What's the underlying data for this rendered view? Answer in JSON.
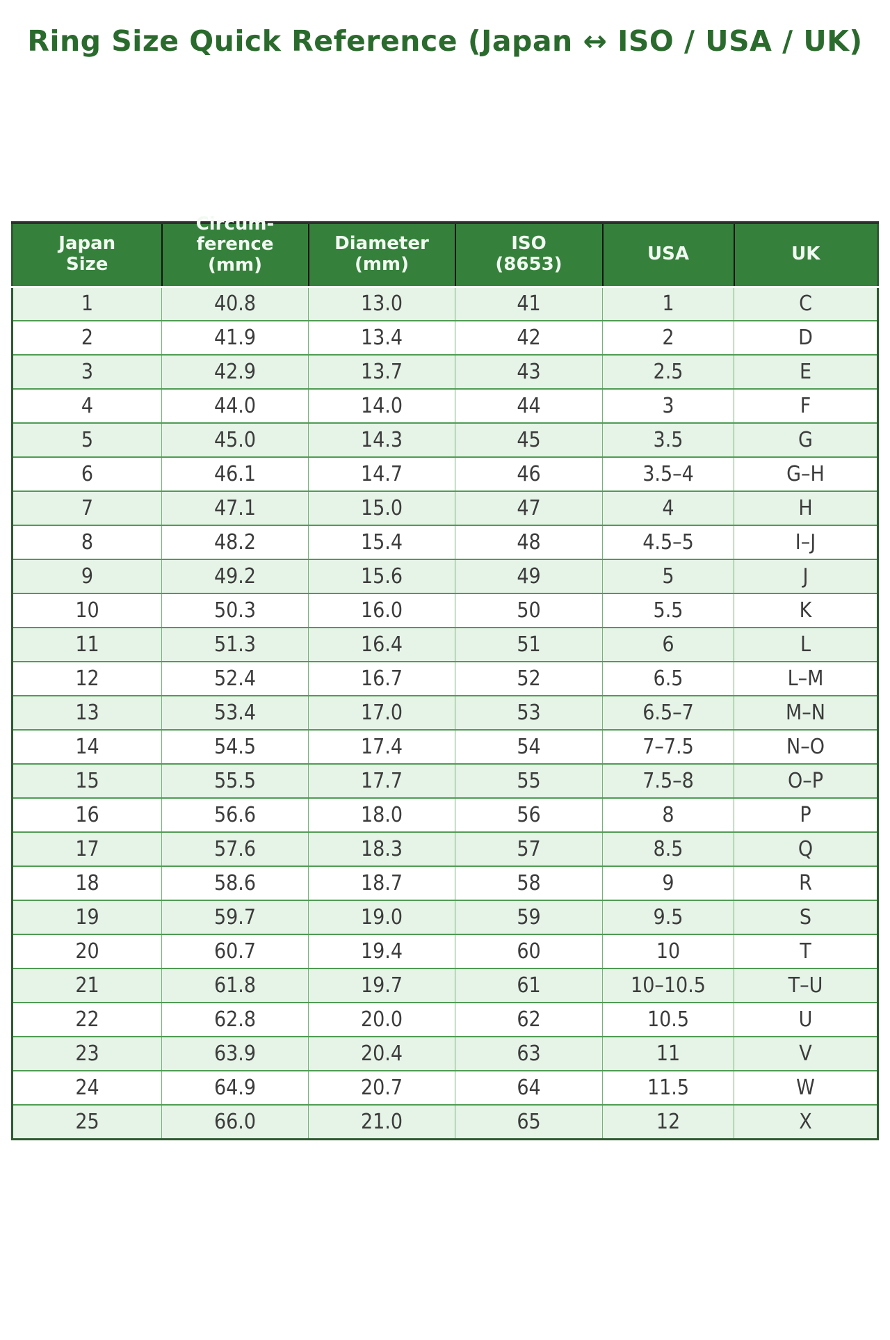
{
  "page": {
    "background": "#ffffff"
  },
  "title": "Ring Size Quick Reference (Japan ↔ ISO / USA / UK)",
  "colors": {
    "title_color": "#2a6b2d",
    "header_bg": "#35813b",
    "header_text": "#f2f9f2",
    "row_alt_bg": "#e6f4e7",
    "row_bg": "#ffffff",
    "grid_green": "#4f9c53",
    "grid_green_light": "#74b277",
    "outer_border": "#2e5a31",
    "cell_text": "#3c3c3c"
  },
  "chart_data": {
    "type": "table",
    "title": "Ring Size Quick Reference (Japan ↔ ISO / USA / UK)",
    "columns": [
      "Japan\nSize",
      "Circum-\nference\n(mm)",
      "Diameter\n(mm)",
      "ISO\n(8653)",
      "USA",
      "UK"
    ],
    "column_keys": [
      "japan_size",
      "circumference_mm",
      "diameter_mm",
      "iso_8653",
      "usa",
      "uk"
    ],
    "rows": [
      [
        "1",
        "40.8",
        "13.0",
        "41",
        "1",
        "C"
      ],
      [
        "2",
        "41.9",
        "13.4",
        "42",
        "2",
        "D"
      ],
      [
        "3",
        "42.9",
        "13.7",
        "43",
        "2.5",
        "E"
      ],
      [
        "4",
        "44.0",
        "14.0",
        "44",
        "3",
        "F"
      ],
      [
        "5",
        "45.0",
        "14.3",
        "45",
        "3.5",
        "G"
      ],
      [
        "6",
        "46.1",
        "14.7",
        "46",
        "3.5–4",
        "G–H"
      ],
      [
        "7",
        "47.1",
        "15.0",
        "47",
        "4",
        "H"
      ],
      [
        "8",
        "48.2",
        "15.4",
        "48",
        "4.5–5",
        "I–J"
      ],
      [
        "9",
        "49.2",
        "15.6",
        "49",
        "5",
        "J"
      ],
      [
        "10",
        "50.3",
        "16.0",
        "50",
        "5.5",
        "K"
      ],
      [
        "11",
        "51.3",
        "16.4",
        "51",
        "6",
        "L"
      ],
      [
        "12",
        "52.4",
        "16.7",
        "52",
        "6.5",
        "L–M"
      ],
      [
        "13",
        "53.4",
        "17.0",
        "53",
        "6.5–7",
        "M–N"
      ],
      [
        "14",
        "54.5",
        "17.4",
        "54",
        "7–7.5",
        "N–O"
      ],
      [
        "15",
        "55.5",
        "17.7",
        "55",
        "7.5–8",
        "O–P"
      ],
      [
        "16",
        "56.6",
        "18.0",
        "56",
        "8",
        "P"
      ],
      [
        "17",
        "57.6",
        "18.3",
        "57",
        "8.5",
        "Q"
      ],
      [
        "18",
        "58.6",
        "18.7",
        "58",
        "9",
        "R"
      ],
      [
        "19",
        "59.7",
        "19.0",
        "59",
        "9.5",
        "S"
      ],
      [
        "20",
        "60.7",
        "19.4",
        "60",
        "10",
        "T"
      ],
      [
        "21",
        "61.8",
        "19.7",
        "61",
        "10–10.5",
        "T–U"
      ],
      [
        "22",
        "62.8",
        "20.0",
        "62",
        "10.5",
        "U"
      ],
      [
        "23",
        "63.9",
        "20.4",
        "63",
        "11",
        "V"
      ],
      [
        "24",
        "64.9",
        "20.7",
        "64",
        "11.5",
        "W"
      ],
      [
        "25",
        "66.0",
        "21.0",
        "65",
        "12",
        "X"
      ]
    ]
  }
}
